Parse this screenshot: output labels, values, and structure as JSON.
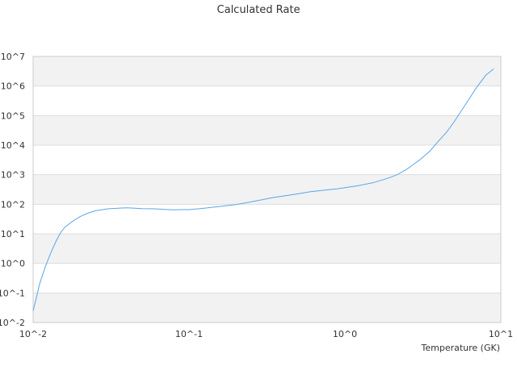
{
  "chart_data": {
    "type": "line",
    "title": "Calculated Rate",
    "xlabel": "Temperature (GK)",
    "ylabel": "",
    "x_scale": "log",
    "y_scale": "log",
    "xlim": [
      0.01,
      10
    ],
    "ylim": [
      0.01,
      10000000
    ],
    "x_ticks": [
      {
        "value": 0.01,
        "label": "10^-2"
      },
      {
        "value": 0.1,
        "label": "10^-1"
      },
      {
        "value": 1,
        "label": "10^0"
      },
      {
        "value": 10,
        "label": "10^1"
      }
    ],
    "y_ticks": [
      {
        "value": 0.01,
        "label": "10^-2"
      },
      {
        "value": 0.1,
        "label": "10^-1"
      },
      {
        "value": 1,
        "label": "10^0"
      },
      {
        "value": 10,
        "label": "10^1"
      },
      {
        "value": 100,
        "label": "10^2"
      },
      {
        "value": 1000,
        "label": "10^3"
      },
      {
        "value": 10000,
        "label": "10^4"
      },
      {
        "value": 100000,
        "label": "10^5"
      },
      {
        "value": 1000000,
        "label": "10^6"
      },
      {
        "value": 10000000,
        "label": "10^7"
      }
    ],
    "grid": "horizontal-bands",
    "legend": "none",
    "colors": {
      "line": "#5aa6e6",
      "band": "#f2f2f2",
      "grid": "#dddddd"
    },
    "series": [
      {
        "x": [
          0.01,
          0.0105,
          0.011,
          0.012,
          0.013,
          0.014,
          0.015,
          0.016,
          0.018,
          0.02,
          0.022,
          0.025,
          0.028,
          0.03,
          0.035,
          0.04,
          0.045,
          0.05,
          0.06,
          0.07,
          0.08,
          0.09,
          0.1,
          0.12,
          0.15,
          0.2,
          0.25,
          0.3,
          0.35,
          0.4,
          0.5,
          0.6,
          0.7,
          0.8,
          0.9,
          1.0,
          1.2,
          1.5,
          1.8,
          2.0,
          2.2,
          2.5,
          3.0,
          3.5,
          4.0,
          4.5,
          5.0,
          6.0,
          7.0,
          8.0,
          9.0
        ],
        "y": [
          0.025,
          0.07,
          0.2,
          0.8,
          2.3,
          5.5,
          11,
          17,
          27,
          38,
          48,
          60,
          66,
          70,
          73,
          76,
          73,
          71,
          70,
          67,
          65,
          66,
          66,
          72,
          82,
          98,
          120,
          145,
          170,
          188,
          225,
          265,
          290,
          315,
          335,
          365,
          420,
          530,
          700,
          850,
          1050,
          1550,
          3100,
          6200,
          14000,
          28000,
          60000,
          260000,
          900000,
          2300000,
          3800000
        ]
      }
    ]
  }
}
